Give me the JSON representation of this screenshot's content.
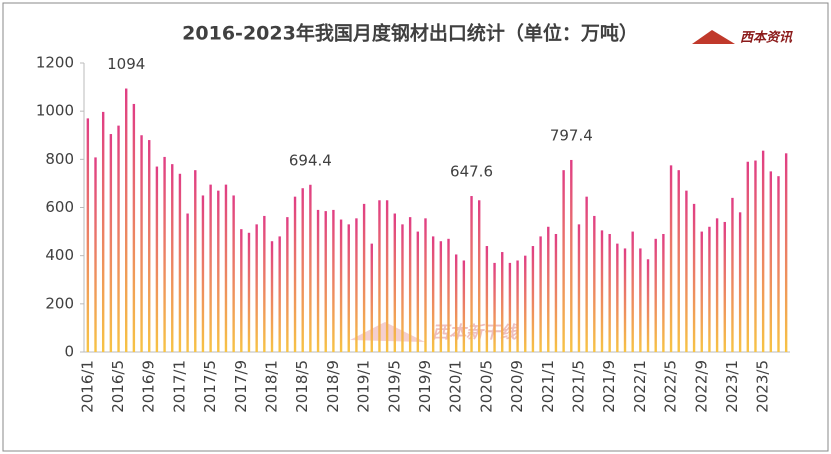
{
  "chart_data": {
    "type": "bar",
    "title": "2016-2023年我国月度钢材出口统计（单位：万吨）",
    "logo": "西本资讯",
    "watermark": "西本新干线",
    "gradient": [
      "#e03d84",
      "#f7c444"
    ],
    "categories": [
      "2016/1",
      null,
      null,
      null,
      "2016/5",
      null,
      null,
      null,
      "2016/9",
      null,
      null,
      null,
      "2017/1",
      null,
      null,
      null,
      "2017/5",
      null,
      null,
      null,
      "2017/9",
      null,
      null,
      null,
      "2018/1",
      null,
      null,
      null,
      "2018/5",
      null,
      null,
      null,
      "2018/9",
      null,
      null,
      null,
      "2019/1",
      null,
      null,
      null,
      "2019/5",
      null,
      null,
      null,
      "2019/9",
      null,
      null,
      null,
      "2020/1",
      null,
      null,
      null,
      "2020/5",
      null,
      null,
      null,
      "2020/9",
      null,
      null,
      null,
      "2021/1",
      null,
      null,
      null,
      "2021/5",
      null,
      null,
      null,
      "2021/9",
      null,
      null,
      null,
      "2022/1",
      null,
      null,
      null,
      "2022/5",
      null,
      null,
      null,
      "2022/9",
      null,
      null,
      null,
      "2023/1",
      null,
      null,
      null,
      "2023/5",
      null,
      null,
      null
    ],
    "values": [
      970,
      808,
      997,
      905,
      940,
      1094,
      1030,
      900,
      880,
      770,
      810,
      780,
      740,
      575,
      755,
      650,
      695,
      670,
      695,
      650,
      510,
      495,
      530,
      565,
      460,
      480,
      560,
      645,
      680,
      694.4,
      590,
      585,
      590,
      550,
      530,
      555,
      615,
      450,
      630,
      630,
      575,
      530,
      560,
      500,
      555,
      480,
      460,
      470,
      405,
      380,
      647.6,
      630,
      440,
      370,
      415,
      370,
      380,
      400,
      440,
      480,
      520,
      490,
      755,
      797.4,
      530,
      645,
      565,
      505,
      490,
      450,
      430,
      500,
      430,
      385,
      470,
      490,
      775,
      755,
      670,
      615,
      500,
      520,
      555,
      540,
      640,
      580,
      790,
      795,
      836,
      750,
      730,
      825
    ],
    "value_labels": [
      null,
      null,
      null,
      null,
      null,
      "1094",
      null,
      null,
      null,
      null,
      null,
      null,
      null,
      null,
      null,
      null,
      null,
      null,
      null,
      null,
      null,
      null,
      null,
      null,
      null,
      null,
      null,
      null,
      null,
      "694.4",
      null,
      null,
      null,
      null,
      null,
      null,
      null,
      null,
      null,
      null,
      null,
      null,
      null,
      null,
      null,
      null,
      null,
      null,
      null,
      null,
      "647.6",
      null,
      null,
      null,
      null,
      null,
      null,
      null,
      null,
      null,
      null,
      null,
      null,
      "797.4",
      null,
      null,
      null,
      null,
      null,
      null,
      null,
      null,
      null,
      null,
      null,
      null,
      null,
      null,
      null,
      null,
      null,
      null,
      null,
      null,
      null,
      null,
      null,
      null,
      null,
      null,
      null,
      null
    ],
    "ylim": [
      0,
      1200
    ],
    "yticks": [
      0,
      200,
      400,
      600,
      800,
      1000,
      1200
    ]
  }
}
